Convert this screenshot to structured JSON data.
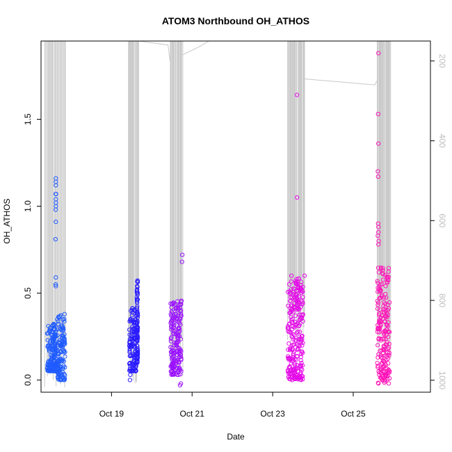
{
  "chart_data": {
    "type": "scatter",
    "title": "ATOM3 Northbound OH_ATHOS",
    "xlabel": "Date",
    "ylabel": "OH_ATHOS",
    "x_axis": {
      "min": "2016-10-17T06:00",
      "max": "2016-10-26T22:00",
      "ticks": [
        "Oct 19",
        "Oct 21",
        "Oct 23",
        "Oct 25"
      ],
      "tick_dates": [
        "2016-10-19",
        "2016-10-21",
        "2016-10-23",
        "2016-10-25"
      ]
    },
    "y_axis": {
      "ylim": [
        -0.07,
        1.95
      ],
      "ticks": [
        "0.0",
        "0.5",
        "1.0",
        "1.5"
      ],
      "tick_values": [
        0.0,
        0.5,
        1.0,
        1.5
      ]
    },
    "y2_axis": {
      "ylim": [
        1030,
        150
      ],
      "reversed": true,
      "ticks": [
        "200",
        "400",
        "600",
        "800",
        "1000"
      ],
      "tick_values": [
        200,
        400,
        600,
        800,
        1000
      ],
      "label": "",
      "color": "#bdbdbd"
    },
    "colors": {
      "early": "#1f5bff",
      "blue": "#2a1bff",
      "purple": "#9a12ff",
      "magenta": "#e40ce8",
      "pink": "#ff14b8",
      "pressure_line": "#c8c8c8"
    },
    "series": [
      {
        "color": "#1f5bff",
        "flights": [
          {
            "start": "2016-10-17T09:40",
            "end": "2016-10-17T15:10",
            "low": 0.05,
            "high": 0.33
          },
          {
            "start": "2016-10-17T15:30",
            "end": "2016-10-17T20:20",
            "low": 0.0,
            "high": 0.38
          }
        ],
        "outliers": [
          {
            "x": "2016-10-17T14:50",
            "y": 1.16
          },
          {
            "x": "2016-10-17T14:50",
            "y": 1.14
          },
          {
            "x": "2016-10-17T14:50",
            "y": 1.12
          },
          {
            "x": "2016-10-17T14:45",
            "y": 1.07
          },
          {
            "x": "2016-10-17T14:55",
            "y": 1.07
          },
          {
            "x": "2016-10-17T14:50",
            "y": 1.04
          },
          {
            "x": "2016-10-17T14:50",
            "y": 1.02
          },
          {
            "x": "2016-10-17T14:50",
            "y": 1.0
          },
          {
            "x": "2016-10-17T14:45",
            "y": 0.98
          },
          {
            "x": "2016-10-17T14:50",
            "y": 0.91
          },
          {
            "x": "2016-10-17T14:40",
            "y": 0.81
          },
          {
            "x": "2016-10-17T14:50",
            "y": 0.59
          },
          {
            "x": "2016-10-17T14:45",
            "y": 0.55
          },
          {
            "x": "2016-10-17T14:50",
            "y": 0.54
          }
        ]
      },
      {
        "color": "#2a1bff",
        "flights": [
          {
            "start": "2016-10-19T10:40",
            "end": "2016-10-19T14:50",
            "low": 0.05,
            "high": 0.42
          },
          {
            "start": "2016-10-19T15:00",
            "end": "2016-10-19T15:40",
            "low": 0.1,
            "high": 0.58
          }
        ],
        "outliers": [
          {
            "x": "2016-10-19T11:00",
            "y": 0.0
          },
          {
            "x": "2016-10-19T11:10",
            "y": 0.03
          }
        ]
      },
      {
        "color": "#9a12ff",
        "flights": [
          {
            "start": "2016-10-20T11:10",
            "end": "2016-10-20T17:40",
            "low": 0.03,
            "high": 0.46
          }
        ],
        "outliers": [
          {
            "x": "2016-10-20T18:10",
            "y": 0.72
          },
          {
            "x": "2016-10-20T18:00",
            "y": 0.68
          },
          {
            "x": "2016-10-20T16:50",
            "y": -0.03
          },
          {
            "x": "2016-10-20T17:20",
            "y": -0.02
          }
        ]
      },
      {
        "color": "#e40ce8",
        "flights": [
          {
            "start": "2016-10-23T09:00",
            "end": "2016-10-23T18:10",
            "low": 0.0,
            "high": 0.6
          }
        ],
        "outliers": [
          {
            "x": "2016-10-23T14:30",
            "y": 1.64
          },
          {
            "x": "2016-10-23T14:30",
            "y": 1.05
          },
          {
            "x": "2016-10-23T11:10",
            "y": 0.6
          },
          {
            "x": "2016-10-23T11:00",
            "y": 0.5
          },
          {
            "x": "2016-10-23T19:00",
            "y": 0.6
          }
        ]
      },
      {
        "color": "#ff14b8",
        "flights": [
          {
            "start": "2016-10-25T14:20",
            "end": "2016-10-25T21:40",
            "low": -0.02,
            "high": 0.65
          }
        ],
        "outliers": [
          {
            "x": "2016-10-25T15:00",
            "y": 1.88
          },
          {
            "x": "2016-10-25T14:50",
            "y": 1.53
          },
          {
            "x": "2016-10-25T15:00",
            "y": 1.36
          },
          {
            "x": "2016-10-25T14:40",
            "y": 1.2
          },
          {
            "x": "2016-10-25T14:50",
            "y": 1.17
          },
          {
            "x": "2016-10-25T14:50",
            "y": 0.9
          },
          {
            "x": "2016-10-25T15:00",
            "y": 0.88
          },
          {
            "x": "2016-10-25T15:00",
            "y": 0.85
          },
          {
            "x": "2016-10-25T14:40",
            "y": 0.83
          },
          {
            "x": "2016-10-25T15:10",
            "y": 0.8
          },
          {
            "x": "2016-10-25T15:00",
            "y": 0.78
          }
        ]
      }
    ],
    "pressure_profile": {
      "color": "#c8c8c8",
      "spikes": [
        {
          "start": "2016-10-17T08:30",
          "end": "2016-10-17T20:30",
          "deep": 870
        },
        {
          "start": "2016-10-19T10:10",
          "end": "2016-10-19T16:00",
          "deep": 860
        },
        {
          "start": "2016-10-20T10:50",
          "end": "2016-10-20T18:10",
          "deep": 830
        },
        {
          "start": "2016-10-23T08:50",
          "end": "2016-10-23T19:10",
          "deep": 760
        },
        {
          "start": "2016-10-25T14:00",
          "end": "2016-10-25T22:00",
          "deep": 790
        }
      ],
      "transits": [
        {
          "x": [
            "2016-10-19T16:00",
            "2016-10-20T09:40",
            "2016-10-20T10:50"
          ],
          "y": [
            150,
            160,
            200
          ]
        },
        {
          "x": [
            "2016-10-20T18:10",
            "2016-10-21T04:00",
            "2016-10-21T10:00"
          ],
          "y": [
            185,
            165,
            150
          ]
        },
        {
          "x": [
            "2016-10-23T19:00",
            "2016-10-25T13:00",
            "2016-10-25T14:00"
          ],
          "y": [
            245,
            260,
            250
          ]
        }
      ]
    }
  }
}
